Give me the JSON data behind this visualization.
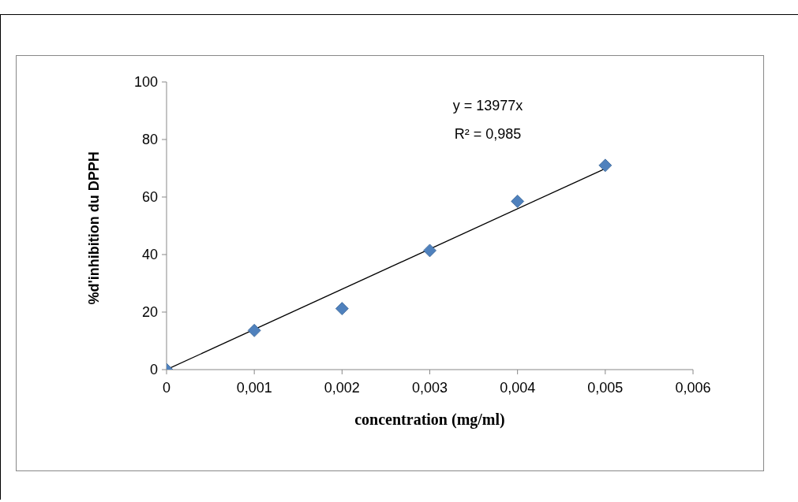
{
  "chart_data": {
    "type": "scatter",
    "xlabel": "concentration (mg/ml)",
    "ylabel": "%d'inhibition du DPPH",
    "annotations": [
      "y = 13977x",
      "R² = 0,985"
    ],
    "x": [
      0,
      0.001,
      0.002,
      0.003,
      0.004,
      0.005
    ],
    "series": [
      {
        "type": "scatter",
        "color": "#4f81bd",
        "marker": "diamond",
        "values": [
          0,
          13.6,
          21.2,
          41.4,
          58.5,
          71.0
        ]
      },
      {
        "type": "line",
        "color": "#000000",
        "marker": "none",
        "line_style": "solid",
        "x": [
          0,
          0.005
        ],
        "values": [
          0,
          69.9
        ]
      }
    ],
    "xlim": [
      0,
      0.006
    ],
    "xticks": [
      {
        "value": 0,
        "label": "0"
      },
      {
        "value": 0.001,
        "label": "0,001"
      },
      {
        "value": 0.002,
        "label": "0,002"
      },
      {
        "value": 0.003,
        "label": "0,003"
      },
      {
        "value": 0.004,
        "label": "0,004"
      },
      {
        "value": 0.005,
        "label": "0,005"
      },
      {
        "value": 0.006,
        "label": "0,006"
      }
    ],
    "ylim": [
      0,
      100
    ],
    "yticks": [
      0,
      20,
      40,
      60,
      80,
      100
    ],
    "grid": false,
    "legend": false
  }
}
